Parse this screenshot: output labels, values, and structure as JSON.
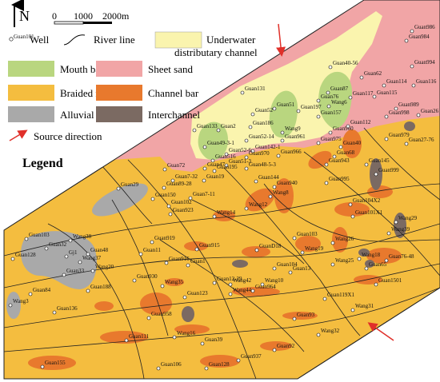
{
  "north": "N",
  "scale": {
    "ticks": [
      0,
      1000,
      2000
    ],
    "unit": "m"
  },
  "legend": {
    "title": "Legend",
    "items": [
      {
        "sample": "Guan101",
        "label": "Well"
      },
      {
        "label": "River line"
      },
      {
        "label_lines": [
          "Underwater",
          "distributary channel"
        ]
      },
      {
        "label": "Mouth bar"
      },
      {
        "label": "Sheet sand"
      },
      {
        "label": "Braided river"
      },
      {
        "label": "Channel bar"
      },
      {
        "label": "Alluvial plain"
      },
      {
        "label": "Interchannel"
      },
      {
        "label": "Source direction"
      }
    ]
  },
  "wells": [
    "Guan986",
    "Guan984",
    "Guan40-56",
    "Guan994",
    "Guan62",
    "Guan114",
    "Guan116",
    "Guan131",
    "Guan76",
    "Guan87",
    "Guan117",
    "Guan115",
    "Wang6",
    "Guan51",
    "Guan197",
    "Guan52",
    "Guan989",
    "Guan26",
    "Guan998",
    "Guan157",
    "Guan133",
    "Guan2",
    "Guan186",
    "Wang9",
    "Guan960",
    "Guan112",
    "Guan52-14",
    "Guan961",
    "Guan975",
    "Guan40",
    "Guan979",
    "Guan27-76",
    "Guan49-3-1",
    "Guan52-6",
    "Guan142-1",
    "Guan970",
    "Guan966",
    "Guan68",
    "Guan516",
    "Guan51-3",
    "Guan48-5-3",
    "Guan943",
    "Guan47",
    "Guan195",
    "Guan72",
    "Guan144",
    "Guan940",
    "Guan995",
    "Guan999",
    "Guan145",
    "Guan7-32",
    "Guan19",
    "Guan29",
    "Guan150",
    "Guan89-28",
    "Guan102",
    "Guan923",
    "Guan7-11",
    "Wang8",
    "Wang12",
    "Wang14",
    "Guan104X2",
    "Guan101X1",
    "Wang29",
    "Guan103",
    "Wang38",
    "Guan32",
    "Gj1",
    "Guan48",
    "Guan919",
    "Guan103",
    "Guan128",
    "Wang37",
    "Guan11",
    "Guan916",
    "Guan915",
    "GuanD18",
    "Wang19",
    "Wang26",
    "Wang39",
    "Wang20",
    "Guan33",
    "Guan1",
    "Guan104",
    "Wang25",
    "Wang18",
    "Guan65",
    "Guan76-48",
    "Guan930",
    "Guan188",
    "Guan84",
    "Wang35",
    "Guan12-29",
    "Wang42",
    "Wang10",
    "Guan13",
    "Guan1501",
    "Wang3",
    "Guan136",
    "Guan123",
    "Guan964",
    "Wang44",
    "Guan119X1",
    "Wang31",
    "Guan958",
    "Guan93",
    "Wang16",
    "Guan39",
    "Wang32",
    "Guan92",
    "Guan937",
    "Guan111",
    "Guan155",
    "Guan106",
    "Guan128"
  ]
}
